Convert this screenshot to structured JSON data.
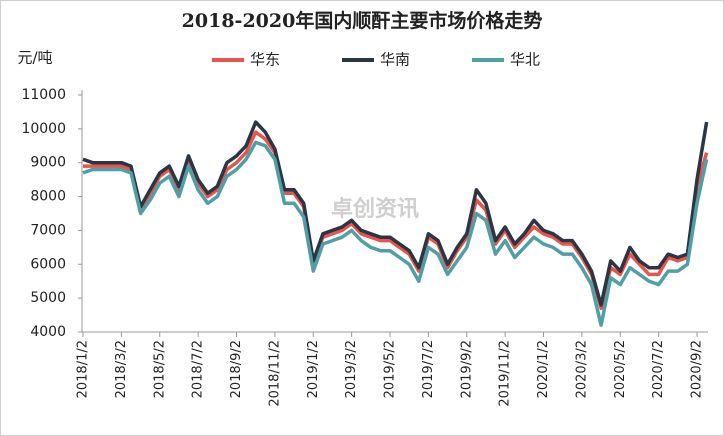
{
  "chart_data": {
    "type": "line",
    "title": "2018-2020年国内顺酐主要市场价格走势",
    "y_label": "元/吨",
    "watermark": "卓创资讯",
    "categories": [
      "2018/1/2",
      null,
      null,
      null,
      "2018/3/2",
      null,
      null,
      null,
      "2018/5/2",
      null,
      null,
      null,
      "2018/7/2",
      null,
      null,
      null,
      "2018/9/2",
      null,
      null,
      null,
      "2018/11/2",
      null,
      null,
      null,
      "2019/1/2",
      null,
      null,
      null,
      "2019/3/2",
      null,
      null,
      null,
      "2019/5/2",
      null,
      null,
      null,
      "2019/7/2",
      null,
      null,
      null,
      "2019/9/2",
      null,
      null,
      null,
      "2019/11/2",
      null,
      null,
      null,
      "2020/1/2",
      null,
      null,
      null,
      "2020/3/2",
      null,
      null,
      null,
      "2020/5/2",
      null,
      null,
      null,
      "2020/7/2",
      null,
      null,
      null,
      "2020/9/2",
      null
    ],
    "series": [
      {
        "name": "华东",
        "color": "#e8534a",
        "values": [
          8900,
          8900,
          8900,
          8900,
          8900,
          8800,
          7600,
          8100,
          8600,
          8800,
          8200,
          9100,
          8400,
          8000,
          8200,
          8800,
          9000,
          9300,
          9900,
          9700,
          9300,
          8100,
          8100,
          7700,
          6000,
          6800,
          6900,
          7000,
          7200,
          6900,
          6800,
          6700,
          6700,
          6500,
          6300,
          5800,
          6800,
          6600,
          5900,
          6400,
          6800,
          7900,
          7600,
          6600,
          7000,
          6500,
          6800,
          7100,
          6900,
          6800,
          6600,
          6600,
          6200,
          5700,
          4700,
          5900,
          5700,
          6300,
          6000,
          5700,
          5700,
          6200,
          6100,
          6200,
          8300,
          9300
        ]
      },
      {
        "name": "华南",
        "color": "#2b3544",
        "values": [
          9100,
          9000,
          9000,
          9000,
          9000,
          8900,
          7700,
          8200,
          8700,
          8900,
          8300,
          9200,
          8500,
          8100,
          8300,
          9000,
          9200,
          9500,
          10200,
          9900,
          9400,
          8200,
          8200,
          7800,
          6100,
          6900,
          7000,
          7100,
          7300,
          7000,
          6900,
          6800,
          6800,
          6600,
          6400,
          5900,
          6900,
          6700,
          6000,
          6500,
          6900,
          8200,
          7800,
          6700,
          7100,
          6600,
          6900,
          7300,
          7000,
          6900,
          6700,
          6700,
          6300,
          5800,
          4800,
          6100,
          5800,
          6500,
          6100,
          5900,
          5900,
          6300,
          6200,
          6300,
          8500,
          10200
        ]
      },
      {
        "name": "华北",
        "color": "#4f9fa7",
        "values": [
          8700,
          8800,
          8800,
          8800,
          8800,
          8700,
          7500,
          7900,
          8400,
          8600,
          8000,
          8900,
          8200,
          7800,
          8000,
          8600,
          8800,
          9100,
          9600,
          9500,
          9100,
          7800,
          7800,
          7400,
          5800,
          6600,
          6700,
          6800,
          7000,
          6700,
          6500,
          6400,
          6400,
          6200,
          6000,
          5500,
          6500,
          6300,
          5700,
          6100,
          6500,
          7500,
          7300,
          6300,
          6700,
          6200,
          6500,
          6800,
          6600,
          6500,
          6300,
          6300,
          5900,
          5400,
          4200,
          5600,
          5400,
          5900,
          5700,
          5500,
          5400,
          5800,
          5800,
          6000,
          7800,
          9100
        ]
      }
    ],
    "ylim": [
      4000,
      11000
    ],
    "yticks": [
      4000,
      5000,
      6000,
      7000,
      8000,
      9000,
      10000,
      11000
    ],
    "grid": false
  }
}
